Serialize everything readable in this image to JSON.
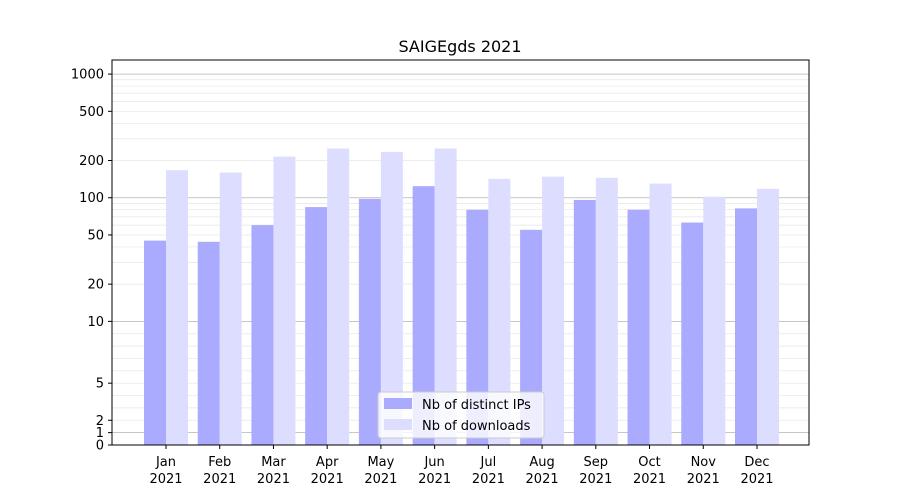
{
  "chart_data": {
    "type": "bar",
    "title": "SAIGEgds 2021",
    "xlabel": "",
    "ylabel": "",
    "y_scale": "symlog",
    "ylim": [
      0,
      1300
    ],
    "y_tick_labels": [
      "0",
      "1",
      "2",
      "5",
      "10",
      "20",
      "50",
      "100",
      "200",
      "500",
      "1000"
    ],
    "categories": [
      [
        "Jan",
        "2021"
      ],
      [
        "Feb",
        "2021"
      ],
      [
        "Mar",
        "2021"
      ],
      [
        "Apr",
        "2021"
      ],
      [
        "May",
        "2021"
      ],
      [
        "Jun",
        "2021"
      ],
      [
        "Jul",
        "2021"
      ],
      [
        "Aug",
        "2021"
      ],
      [
        "Sep",
        "2021"
      ],
      [
        "Oct",
        "2021"
      ],
      [
        "Nov",
        "2021"
      ],
      [
        "Dec",
        "2021"
      ]
    ],
    "series": [
      {
        "name": "Nb of distinct IPs",
        "color": "#aaaaff",
        "values": [
          45,
          44,
          60,
          84,
          98,
          124,
          80,
          55,
          96,
          80,
          63,
          82
        ]
      },
      {
        "name": "Nb of downloads",
        "color": "#ddddff",
        "values": [
          167,
          160,
          215,
          250,
          235,
          250,
          142,
          148,
          145,
          130,
          102,
          118
        ]
      }
    ],
    "legend_position": "lower-center",
    "grid": true
  }
}
